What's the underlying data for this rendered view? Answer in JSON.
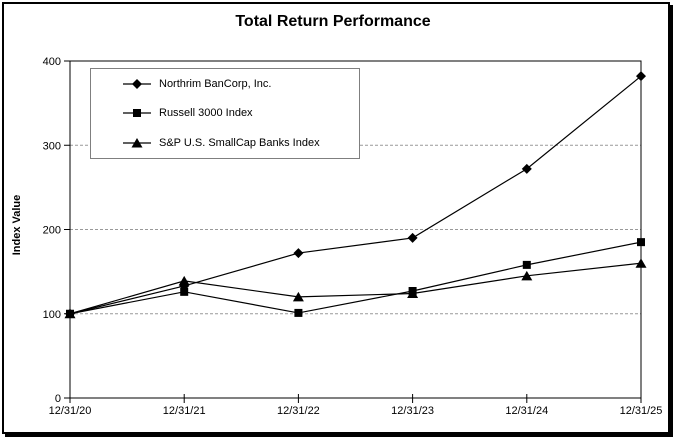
{
  "window": {
    "background": "#ffffff",
    "frame_border_color": "#000000"
  },
  "colors": {
    "series": "#000000",
    "axis": "#000000",
    "gridline": "#999999",
    "legend_border": "#7f7f7f"
  },
  "chart_data": {
    "type": "line",
    "title": "Total Return Performance",
    "xlabel": "",
    "ylabel": "Index Value",
    "categories": [
      "12/31/20",
      "12/31/21",
      "12/31/22",
      "12/31/23",
      "12/31/24",
      "12/31/25"
    ],
    "yticks": [
      0,
      100,
      200,
      300,
      400
    ],
    "ylim": [
      0,
      400
    ],
    "grid": "dashed horizontal gridlines at 100, 200, 300",
    "legend_position": "inside top-left, boxed",
    "series": [
      {
        "name": "Northrim BanCorp, Inc.",
        "marker": "diamond",
        "color": "#000000",
        "values": [
          100,
          133,
          172,
          190,
          272,
          382
        ]
      },
      {
        "name": "Russell 3000 Index",
        "marker": "square",
        "color": "#000000",
        "values": [
          100,
          126,
          101,
          127,
          158,
          185
        ]
      },
      {
        "name": "S&P U.S. SmallCap Banks Index",
        "marker": "triangle",
        "color": "#000000",
        "values": [
          100,
          139,
          120,
          124,
          145,
          160
        ]
      }
    ]
  }
}
